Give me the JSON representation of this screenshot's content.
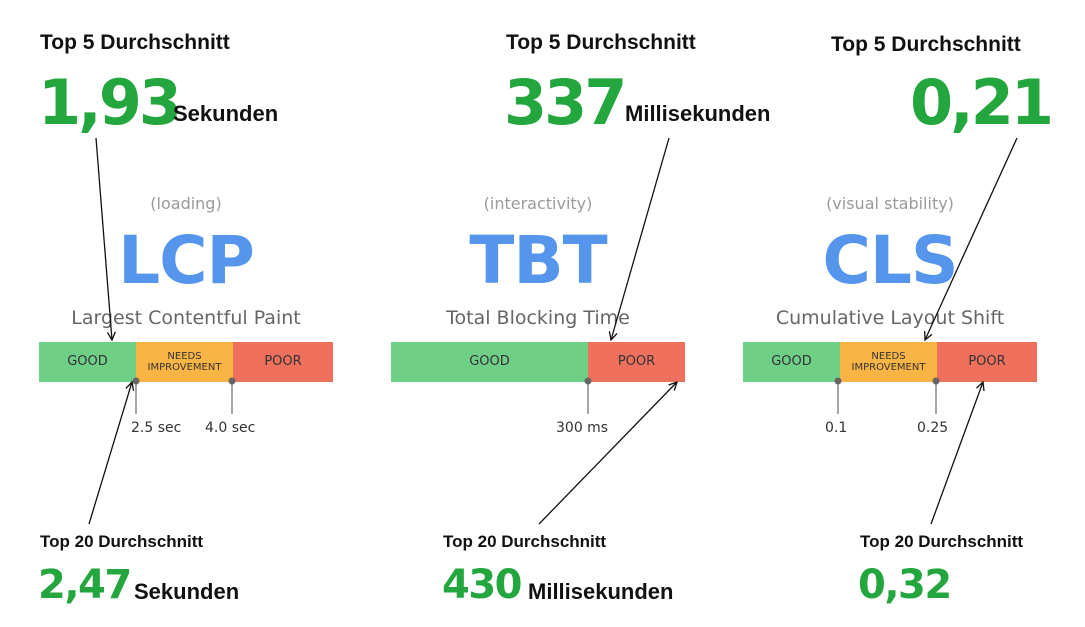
{
  "panels": [
    {
      "top_label": "Top 5 Durchschnitt",
      "top_value": "1,93",
      "top_unit": "Sekunden",
      "subtitle": "(loading)",
      "metric": "LCP",
      "full_name": "Largest Contentful Paint",
      "segments": [
        "GOOD",
        "NEEDS IMPROVEMENT",
        "POOR"
      ],
      "thresholds": [
        "2.5 sec",
        "4.0 sec"
      ],
      "bottom_label": "Top 20 Durchschnitt",
      "bottom_value": "2,47",
      "bottom_unit": "Sekunden"
    },
    {
      "top_label": "Top 5 Durchschnitt",
      "top_value": "337",
      "top_unit": "Millisekunden",
      "subtitle": "(interactivity)",
      "metric": "TBT",
      "full_name": "Total Blocking Time",
      "segments": [
        "GOOD",
        "POOR"
      ],
      "thresholds": [
        "300 ms"
      ],
      "bottom_label": "Top 20 Durchschnitt",
      "bottom_value": "430",
      "bottom_unit": "Millisekunden"
    },
    {
      "top_label": "Top 5 Durchschnitt",
      "top_value": "0,21",
      "top_unit": "",
      "subtitle": "(visual stability)",
      "metric": "CLS",
      "full_name": "Cumulative Layout Shift",
      "segments": [
        "GOOD",
        "NEEDS IMPROVEMENT",
        "POOR"
      ],
      "thresholds": [
        "0.1",
        "0.25"
      ],
      "bottom_label": "Top 20 Durchschnitt",
      "bottom_value": "0,32",
      "bottom_unit": ""
    }
  ],
  "colors": {
    "value_green": "#22a63d",
    "metric_blue": "#5596ec",
    "good": "#6fcf87",
    "needs_improvement": "#f8b444",
    "poor": "#f0705e"
  }
}
